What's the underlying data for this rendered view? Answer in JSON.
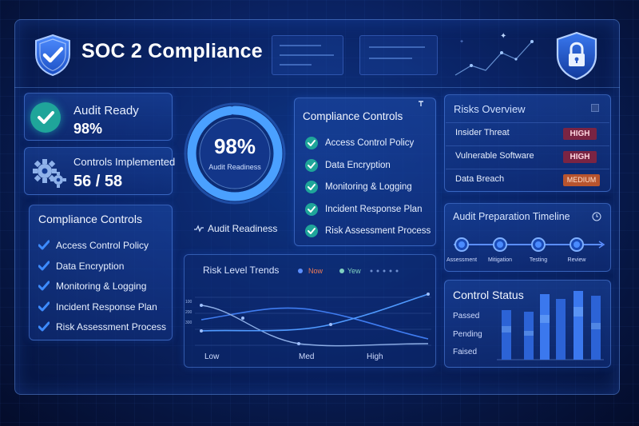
{
  "header": {
    "title": "SOC 2 Compliance"
  },
  "audit": {
    "label": "Audit Ready",
    "value": "98%"
  },
  "controls_implemented": {
    "label": "Controls Implemented",
    "value": "56 / 58"
  },
  "left_controls": {
    "title": "Compliance Controls",
    "items": [
      "Access Control Policy",
      "Data Encryption",
      "Monitoring & Logging",
      "Incident Response Plan",
      "Risk Assessment Process"
    ]
  },
  "ring": {
    "value": "98%",
    "subtitle": "Audit Readiness",
    "progress": 0.98
  },
  "audit_readiness_label": "Audit Readiness",
  "center_controls": {
    "title": "Compliance Controls",
    "items": [
      "Access Control Policy",
      "Data Encryption",
      "Monitoring & Logging",
      "Incident Response Plan",
      "Risk Assessment Process"
    ]
  },
  "risks": {
    "title": "Risks Overview",
    "items": [
      {
        "name": "Insider Threat",
        "level": "HIGH"
      },
      {
        "name": "Vulnerable Software",
        "level": "HIGH"
      },
      {
        "name": "Data Breach",
        "level": "MEDIUM"
      }
    ]
  },
  "timeline": {
    "title": "Audit Preparation Timeline",
    "steps": [
      "Assessment",
      "Mitigation",
      "Testing",
      "Review"
    ]
  },
  "risk_trends": {
    "title": "Risk Level Trends",
    "legend_now": "Now",
    "legend_prev": "Yew",
    "x_labels": [
      "Low",
      "Med",
      "High"
    ],
    "y_labels": [
      "100",
      "200",
      "300"
    ]
  },
  "control_status": {
    "title": "Control Status",
    "labels": [
      "Passed",
      "Pending",
      "Faised"
    ]
  },
  "colors": {
    "accent_teal": "#1fa59a",
    "check_blue": "#3d8bff",
    "high_badge": "#7a2443",
    "medium_badge": "#b7542e",
    "ring_blue": "#4aa0ff"
  }
}
